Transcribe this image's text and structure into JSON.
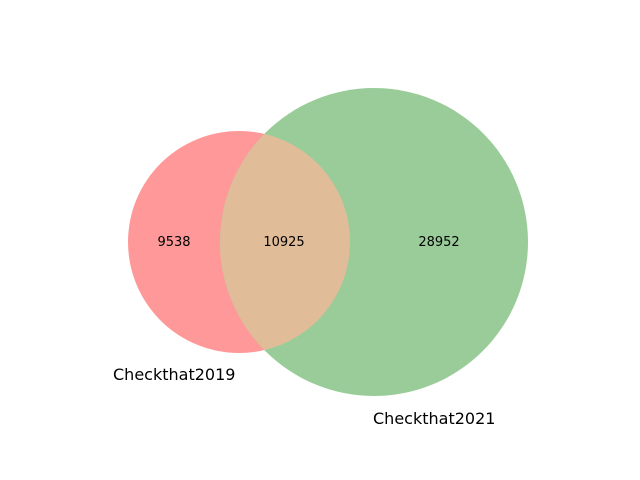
{
  "venn": {
    "sets": [
      {
        "label": "Checkthat2019",
        "color": "#ff9999"
      },
      {
        "label": "Checkthat2021",
        "color": "#99cc99"
      }
    ],
    "overlap_color": "#e0bc99",
    "regions": {
      "only_a": "9538",
      "intersection": "10925",
      "only_b": "28952"
    }
  }
}
